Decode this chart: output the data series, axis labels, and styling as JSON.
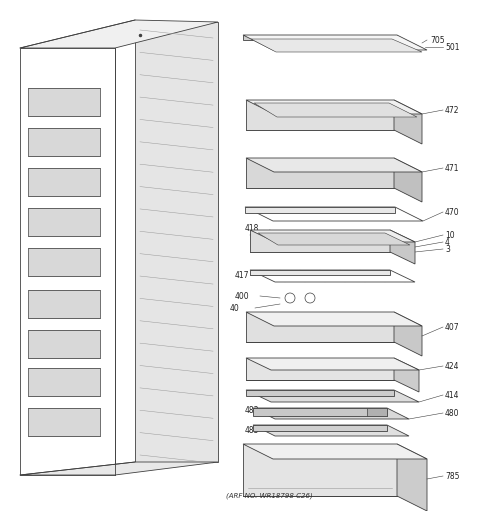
{
  "caption": "(ARF NO. WR18798 C26)",
  "background_color": "#ffffff",
  "line_color": "#404040",
  "figsize": [
    4.79,
    5.11
  ],
  "dpi": 100,
  "lw": 0.6
}
